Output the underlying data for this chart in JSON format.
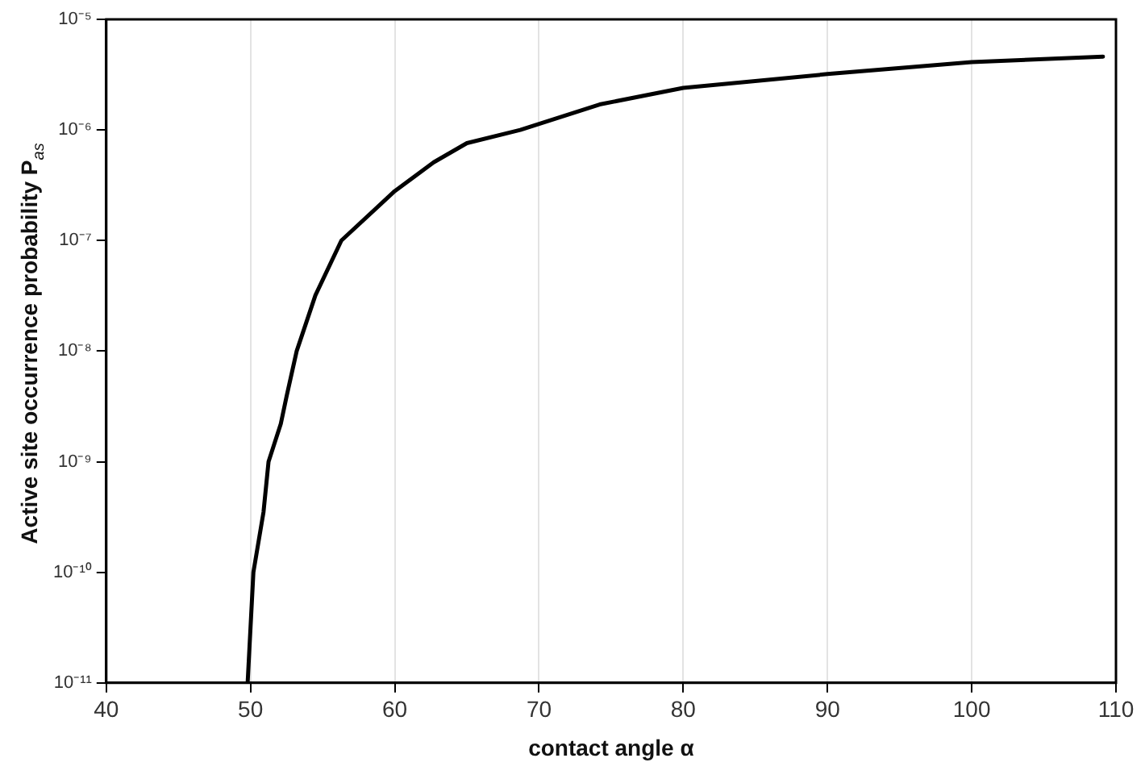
{
  "chart_data": {
    "type": "line",
    "xlabel": "contact angle α",
    "ylabel": "Active site occurrence probability P$_{as}$",
    "log": "y",
    "grid": "x",
    "marker": "none",
    "line_style": "solid",
    "xlim": [
      40,
      110
    ],
    "xticks": [
      40,
      50,
      60,
      70,
      80,
      90,
      100,
      110
    ],
    "ylim": [
      1e-11,
      1e-05
    ],
    "yticks": [
      {
        "value": 1e-11,
        "label": "10⁻¹¹"
      },
      {
        "value": 1e-10,
        "label": "10⁻¹⁰"
      },
      {
        "value": 1e-09,
        "label": "10⁻⁹"
      },
      {
        "value": 1e-08,
        "label": "10⁻⁸"
      },
      {
        "value": 1e-07,
        "label": "10⁻⁷"
      },
      {
        "value": 1e-06,
        "label": "10⁻⁶"
      },
      {
        "value": 1e-05,
        "label": "10⁻⁵"
      }
    ],
    "x": [
      49.8,
      50.2,
      50.9,
      51.25,
      52.1,
      52.5,
      53.2,
      54.5,
      56.3,
      60,
      62.7,
      65,
      68.7,
      74.2,
      80,
      90,
      100,
      109.1
    ],
    "series": [
      {
        "color": "#000000",
        "values": [
          1e-11,
          1e-10,
          3.5e-10,
          1e-09,
          2.2e-09,
          3.9e-09,
          1e-08,
          3.2e-08,
          1e-07,
          2.8e-07,
          5.1e-07,
          7.6e-07,
          1e-06,
          1.7e-06,
          2.4e-06,
          3.2e-06,
          4.1e-06,
          4.6e-06
        ]
      }
    ]
  }
}
